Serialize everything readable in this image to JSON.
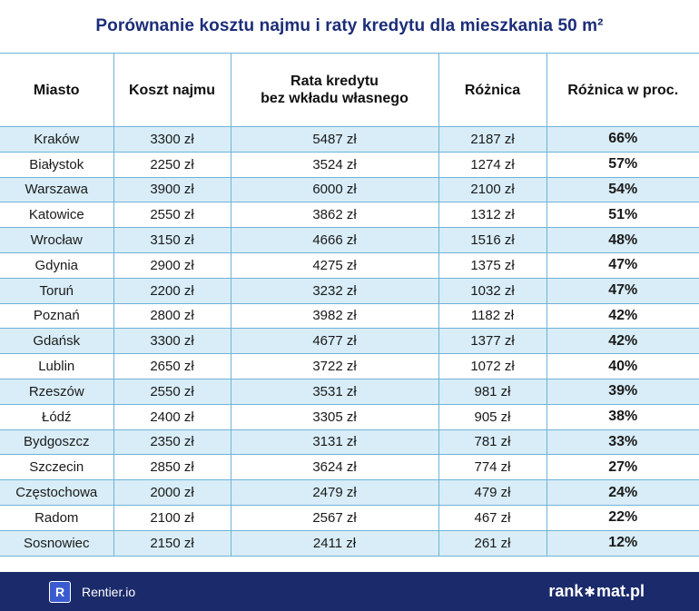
{
  "title": "Porównanie kosztu najmu i raty kredytu dla mieszkania 50 m²",
  "chart_data": {
    "type": "table",
    "columns": [
      "Miasto",
      "Koszt najmu",
      "Rata kredytu bez wkładu własnego",
      "Różnica",
      "Różnica w proc."
    ],
    "header_lines": {
      "col1": "Miasto",
      "col2": "Koszt najmu",
      "col3_line1": "Rata kredytu",
      "col3_line2": "bez wkładu własnego",
      "col4": "Różnica",
      "col5": "Różnica w proc."
    },
    "rows": [
      [
        "Kraków",
        "3300 zł",
        "5487 zł",
        "2187 zł",
        "66%"
      ],
      [
        "Białystok",
        "2250 zł",
        "3524 zł",
        "1274 zł",
        "57%"
      ],
      [
        "Warszawa",
        "3900 zł",
        "6000 zł",
        "2100 zł",
        "54%"
      ],
      [
        "Katowice",
        "2550 zł",
        "3862 zł",
        "1312 zł",
        "51%"
      ],
      [
        "Wrocław",
        "3150 zł",
        "4666 zł",
        "1516 zł",
        "48%"
      ],
      [
        "Gdynia",
        "2900 zł",
        "4275 zł",
        "1375 zł",
        "47%"
      ],
      [
        "Toruń",
        "2200 zł",
        "3232 zł",
        "1032 zł",
        "47%"
      ],
      [
        "Poznań",
        "2800 zł",
        "3982 zł",
        "1182 zł",
        "42%"
      ],
      [
        "Gdańsk",
        "3300 zł",
        "4677 zł",
        "1377 zł",
        "42%"
      ],
      [
        "Lublin",
        "2650 zł",
        "3722 zł",
        "1072 zł",
        "40%"
      ],
      [
        "Rzeszów",
        "2550 zł",
        "3531 zł",
        "981 zł",
        "39%"
      ],
      [
        "Łódź",
        "2400 zł",
        "3305 zł",
        "905 zł",
        "38%"
      ],
      [
        "Bydgoszcz",
        "2350 zł",
        "3131 zł",
        "781 zł",
        "33%"
      ],
      [
        "Szczecin",
        "2850 zł",
        "3624 zł",
        "774 zł",
        "27%"
      ],
      [
        "Częstochowa",
        "2000 zł",
        "2479 zł",
        "479 zł",
        "24%"
      ],
      [
        "Radom",
        "2100 zł",
        "2567 zł",
        "467 zł",
        "22%"
      ],
      [
        "Sosnowiec",
        "2150 zł",
        "2411 zł",
        "261 zł",
        "12%"
      ]
    ]
  },
  "footer": {
    "rentier_logo_letter": "R",
    "rentier_label": "Rentier.io",
    "rankomat_part1": "rank",
    "rankomat_star": "✱",
    "rankomat_part2": "mat.pl"
  },
  "colors": {
    "title": "#1c2d78",
    "row_stripe": "#d8edf7",
    "grid": "#6fb3d6",
    "footer_bg": "#1b2a6b"
  }
}
